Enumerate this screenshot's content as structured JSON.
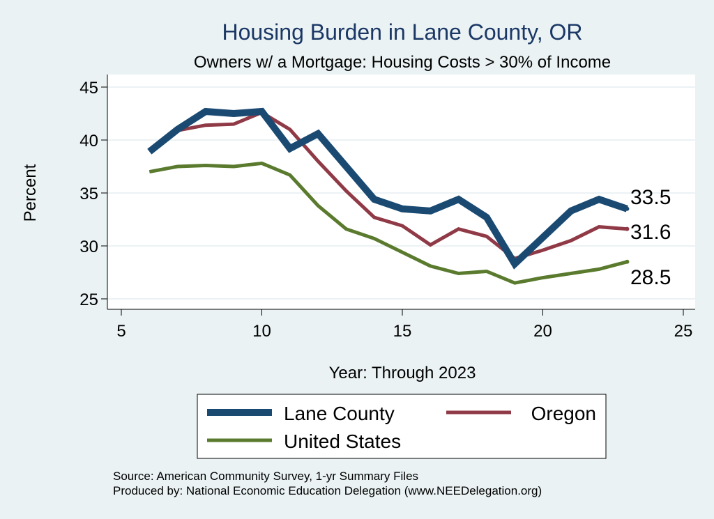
{
  "chart_data": {
    "type": "line",
    "title": "Housing Burden in Lane County, OR",
    "subtitle": "Owners w/ a Mortgage: Housing Costs > 30% of Income",
    "xlabel": "Year: Through 2023",
    "ylabel": "Percent",
    "xlim": [
      5,
      25
    ],
    "ylim": [
      25,
      45
    ],
    "x_ticks": [
      5,
      10,
      15,
      20,
      25
    ],
    "y_ticks": [
      25,
      30,
      35,
      40,
      45
    ],
    "grid": true,
    "legend_position": "bottom",
    "x": [
      6,
      7,
      8,
      9,
      10,
      11,
      12,
      13,
      14,
      15,
      16,
      17,
      18,
      19,
      20,
      21,
      22,
      23
    ],
    "series": [
      {
        "name": "Lane County",
        "color": "#1a4a72",
        "values": [
          38.9,
          41.0,
          42.7,
          42.5,
          42.7,
          39.2,
          40.6,
          37.5,
          34.4,
          33.5,
          33.3,
          34.4,
          32.7,
          28.3,
          30.8,
          33.3,
          34.4,
          33.5
        ],
        "end_label": "33.5"
      },
      {
        "name": "Oregon",
        "color": "#8f3a46",
        "values": [
          39.0,
          40.9,
          41.4,
          41.5,
          42.6,
          41.0,
          38.0,
          35.2,
          32.7,
          31.9,
          30.1,
          31.6,
          30.9,
          28.8,
          29.6,
          30.5,
          31.8,
          31.6
        ],
        "end_label": "31.6"
      },
      {
        "name": "United States",
        "color": "#5a7a2e",
        "values": [
          37.0,
          37.5,
          37.6,
          37.5,
          37.8,
          36.7,
          33.8,
          31.6,
          30.7,
          29.4,
          28.1,
          27.4,
          27.6,
          26.5,
          27.0,
          27.4,
          27.8,
          28.5
        ],
        "end_label": "28.5"
      }
    ],
    "notes": [
      "Source: American Community Survey, 1-yr Summary Files",
      "Produced by: National Economic Education Delegation (www.NEEDelegation.org)"
    ]
  }
}
